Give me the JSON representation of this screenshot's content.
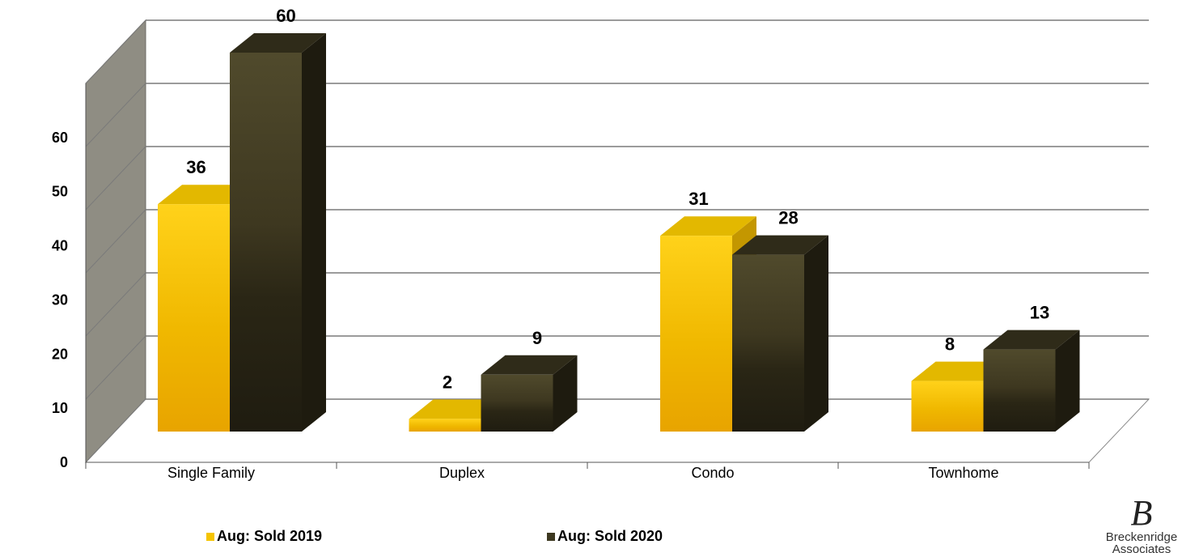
{
  "chart_data": {
    "type": "bar",
    "categories": [
      "Single Family",
      "Duplex",
      "Condo",
      "Townhome"
    ],
    "series": [
      {
        "name": "Aug: Sold 2019",
        "values": [
          36,
          2,
          31,
          8
        ],
        "color": "#F5C400"
      },
      {
        "name": "Aug: Sold 2020",
        "values": [
          60,
          9,
          28,
          13
        ],
        "color": "#3D3820"
      }
    ],
    "y_ticks": [
      "0",
      "10",
      "20",
      "30",
      "40",
      "50",
      "60"
    ],
    "ylim": [
      0,
      70
    ],
    "grid": true,
    "legend_position": "bottom",
    "three_d": true
  },
  "logo": {
    "monogram": "B",
    "line1": "Breckenridge",
    "line2": "Associates"
  }
}
